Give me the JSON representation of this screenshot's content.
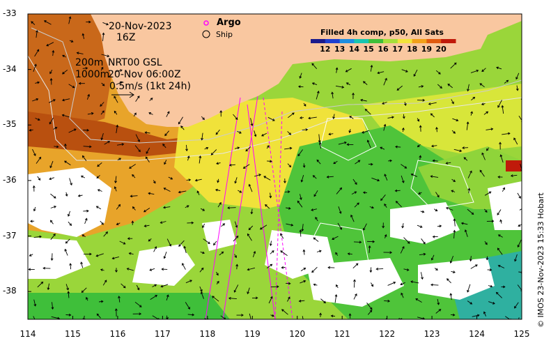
{
  "map": {
    "lon_ticks": [
      "114",
      "115",
      "116",
      "117",
      "118",
      "119",
      "120",
      "121",
      "122",
      "123",
      "124",
      "125"
    ],
    "lat_ticks": [
      "-33",
      "-34",
      "-35",
      "-36",
      "-37",
      "-38"
    ],
    "lon_range": [
      114,
      125
    ],
    "lat_range": [
      -38.5,
      -33
    ]
  },
  "info": {
    "date": "20-Nov-2023",
    "hour": "16Z",
    "contour1": "200m",
    "contour2": "1000m",
    "model": "NRT00 GSL",
    "model_time": "20-Nov 06:00Z",
    "scale": "0.5m/s (1kt 24h)"
  },
  "legend": {
    "argo": "Argo",
    "ship": "Ship",
    "argo_color": "#ff00ff"
  },
  "colorbar": {
    "title": "Filled 4h comp, p50, All Sats",
    "ticks": [
      "12",
      "13",
      "14",
      "15",
      "16",
      "17",
      "18",
      "19",
      "20"
    ],
    "colors": [
      "#1a1a8c",
      "#1f3fd0",
      "#1e8fe0",
      "#19c6b0",
      "#3fbf3a",
      "#a6e03a",
      "#f2e43a",
      "#f2a01a",
      "#e05a10",
      "#c01a0a"
    ]
  },
  "credit": "© IMOS 23-Nov-2023 15:33 Hobart",
  "colors": {
    "land": "#f9c7a0",
    "cloud": "#ffffff"
  }
}
